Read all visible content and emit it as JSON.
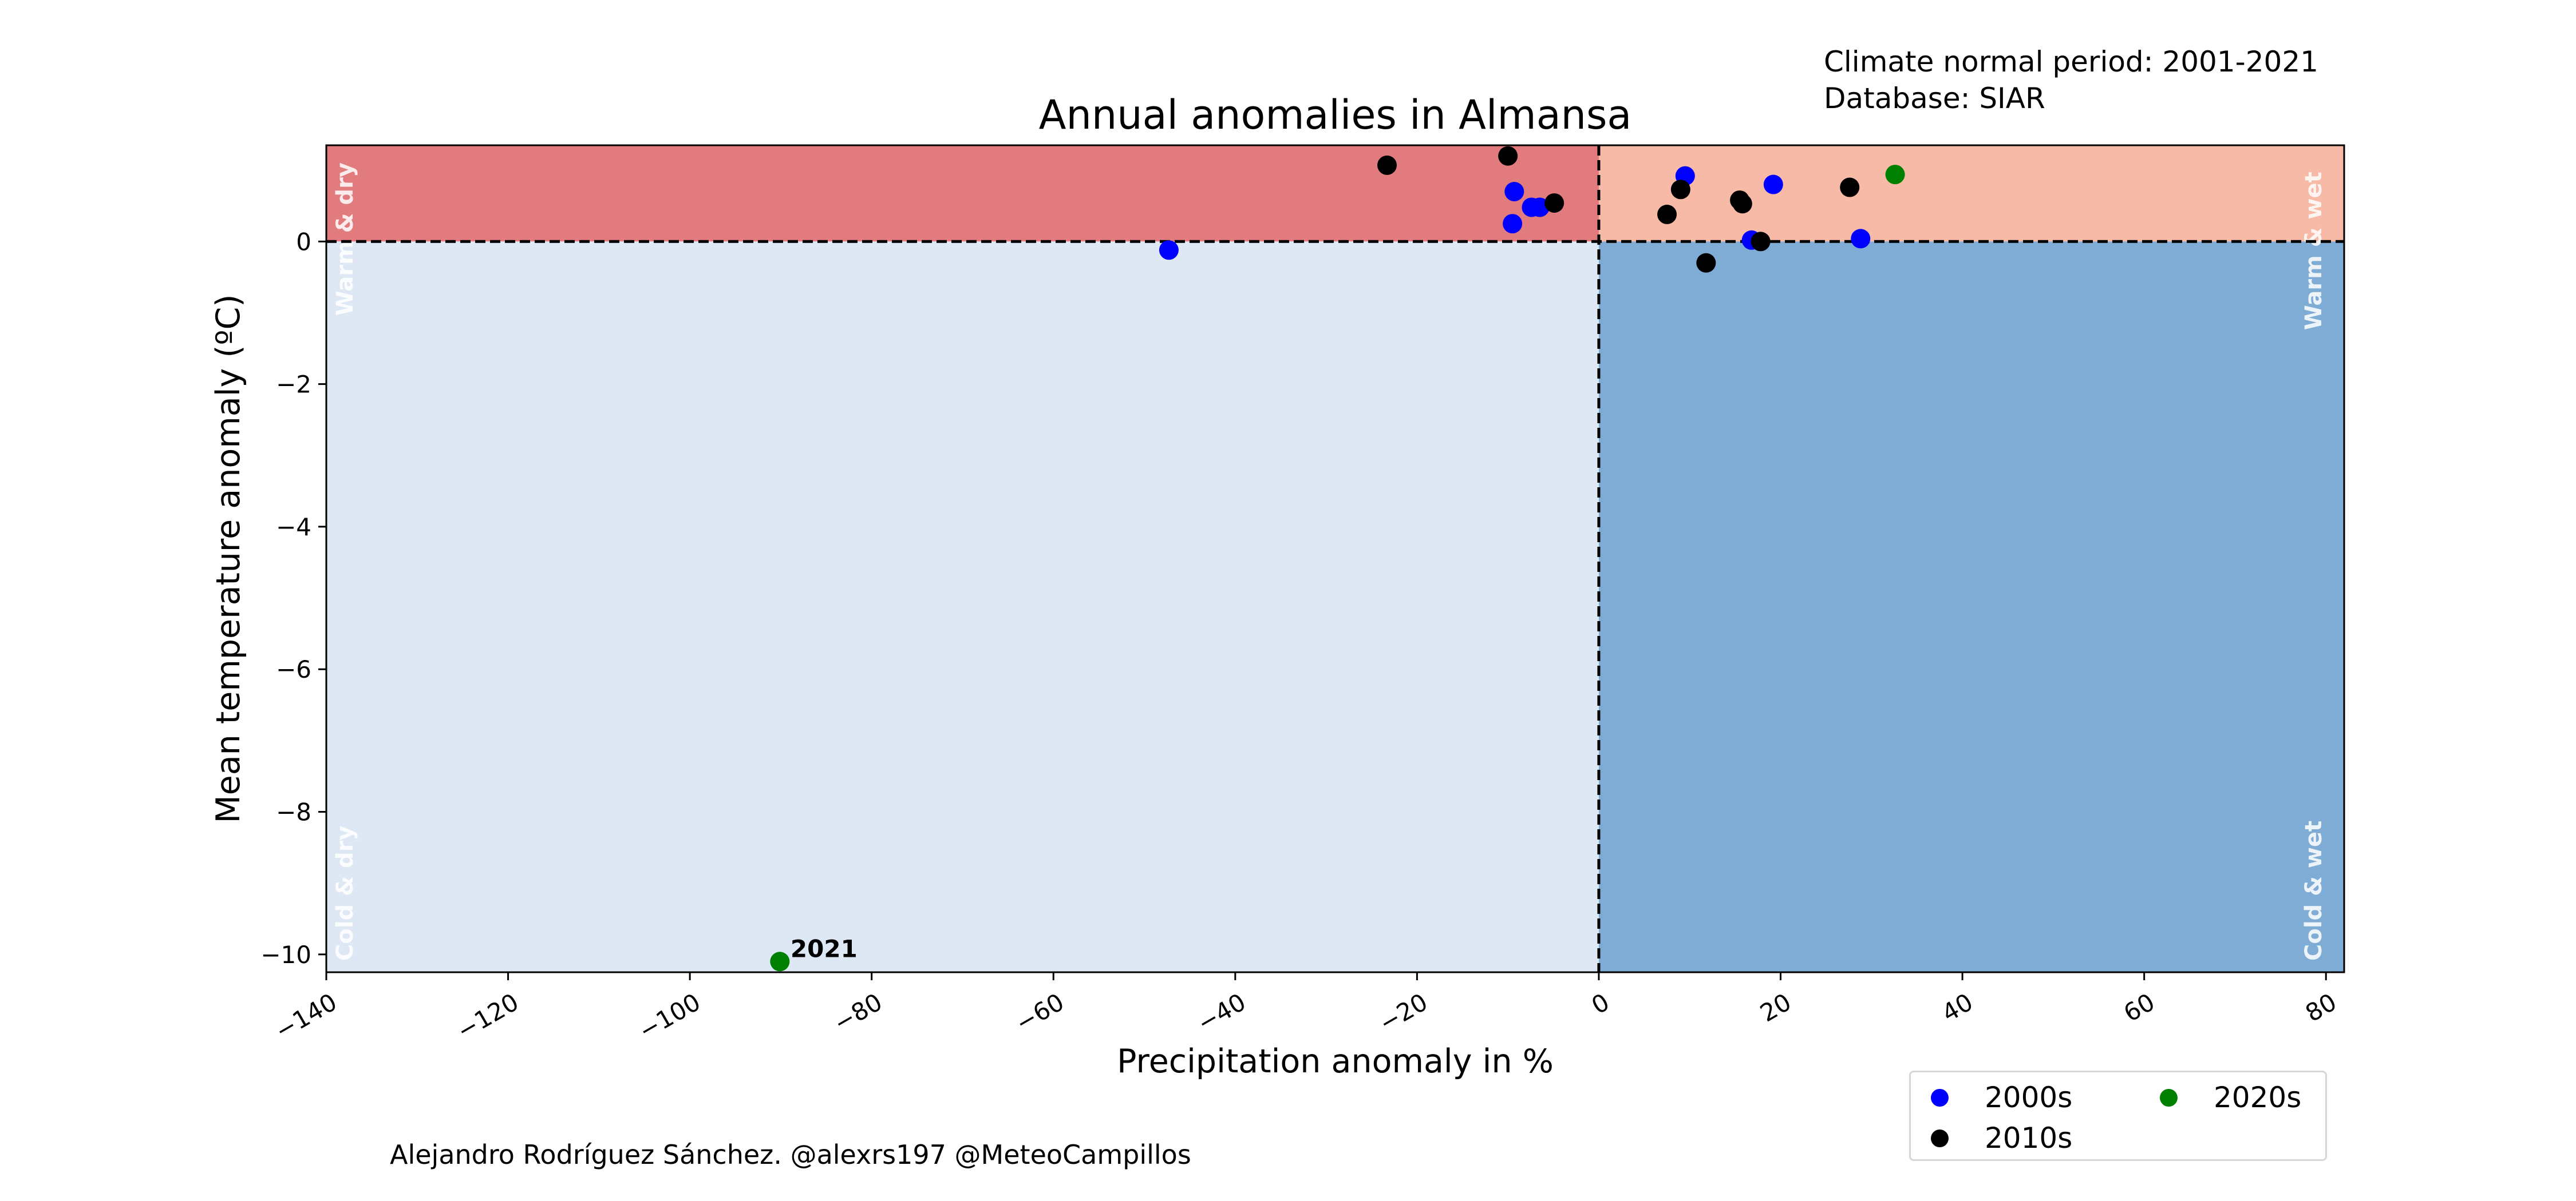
{
  "info": {
    "normal_period": "Climate normal period: 2001-2021",
    "database": "Database: SIAR"
  },
  "credit": "Alejandro Rodríguez Sánchez. @alexrs197 @MeteoCampillos",
  "chart_data": {
    "type": "scatter",
    "title": "Annual anomalies in Almansa",
    "xlabel": "Precipitation anomaly in %",
    "ylabel": "Mean temperature anomaly (ºC)",
    "xlim": [
      -140,
      82
    ],
    "ylim": [
      -10.25,
      1.35
    ],
    "x_ticks": [
      -140,
      -120,
      -100,
      -80,
      -60,
      -40,
      -20,
      0,
      20,
      40,
      60,
      80
    ],
    "x_tick_labels": [
      "−140",
      "−120",
      "−100",
      "−80",
      "−60",
      "−40",
      "−20",
      "0",
      "20",
      "40",
      "60",
      "80"
    ],
    "y_ticks": [
      0,
      -2,
      -4,
      -6,
      -8,
      -10
    ],
    "y_tick_labels": [
      "0",
      "−2",
      "−4",
      "−6",
      "−8",
      "−10"
    ],
    "grid": false,
    "legend_position": "below-right",
    "reference_lines": {
      "x": 0,
      "y": 0,
      "style": "dashed"
    },
    "quadrants": [
      {
        "label": "Warm & dry",
        "x_range": [
          -140,
          0
        ],
        "y_range": [
          0,
          1.35
        ],
        "color": "#e27b7d"
      },
      {
        "label": "Warm & wet",
        "x_range": [
          0,
          82
        ],
        "y_range": [
          0,
          1.35
        ],
        "color": "#f6baa6"
      },
      {
        "label": "Cold & dry",
        "x_range": [
          -140,
          0
        ],
        "y_range": [
          -10.25,
          0
        ],
        "color": "#dde8f4"
      },
      {
        "label": "Cold & wet",
        "x_range": [
          0,
          82
        ],
        "y_range": [
          -10.25,
          0
        ],
        "color": "#7facd4"
      }
    ],
    "annotations": [
      {
        "text": "2021",
        "x": -90,
        "y": -10.1
      }
    ],
    "series": [
      {
        "name": "2000s",
        "color": "#0000ff",
        "points": [
          {
            "x": -47.3,
            "y": -0.12
          },
          {
            "x": -9.3,
            "y": 0.7
          },
          {
            "x": -9.5,
            "y": 0.25
          },
          {
            "x": -7.4,
            "y": 0.48
          },
          {
            "x": -6.5,
            "y": 0.48
          },
          {
            "x": 9.5,
            "y": 0.92
          },
          {
            "x": 16.8,
            "y": 0.02
          },
          {
            "x": 19.2,
            "y": 0.8
          },
          {
            "x": 28.8,
            "y": 0.04
          }
        ]
      },
      {
        "name": "2010s",
        "color": "#000000",
        "points": [
          {
            "x": -23.3,
            "y": 1.07
          },
          {
            "x": -10.0,
            "y": 1.2
          },
          {
            "x": -4.9,
            "y": 0.54
          },
          {
            "x": 7.5,
            "y": 0.38
          },
          {
            "x": 9.0,
            "y": 0.73
          },
          {
            "x": 11.8,
            "y": -0.3
          },
          {
            "x": 15.5,
            "y": 0.58
          },
          {
            "x": 15.8,
            "y": 0.53
          },
          {
            "x": 17.8,
            "y": 0.0
          },
          {
            "x": 27.6,
            "y": 0.76
          }
        ]
      },
      {
        "name": "2020s",
        "color": "#008000",
        "points": [
          {
            "x": 32.6,
            "y": 0.94
          },
          {
            "x": -90.1,
            "y": -10.1
          }
        ]
      }
    ]
  }
}
